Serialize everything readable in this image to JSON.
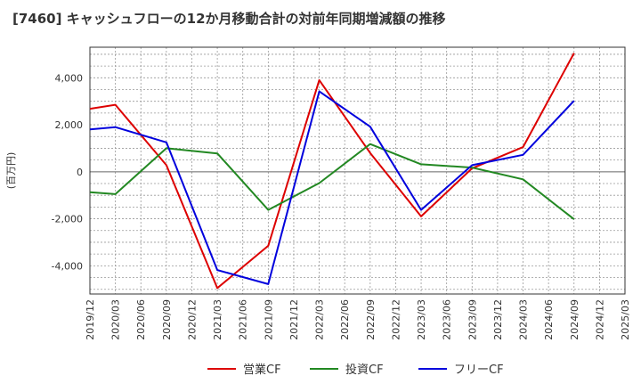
{
  "chart_data": {
    "type": "line",
    "title": "[7460]  キャッシュフローの12か月移動合計の対前年同期増減額の推移",
    "ylabel": "(百万円)",
    "xlabel": "",
    "ylim": [
      -5200,
      5300
    ],
    "yticks": [
      -4000,
      -2000,
      0,
      2000,
      4000
    ],
    "ytick_labels": [
      "-4,000",
      "-2,000",
      "0",
      "2,000",
      "4,000"
    ],
    "x_ticks": [
      "2019/12",
      "2020/03",
      "2020/06",
      "2020/09",
      "2020/12",
      "2021/03",
      "2021/06",
      "2021/09",
      "2021/12",
      "2022/03",
      "2022/06",
      "2022/09",
      "2022/12",
      "2023/03",
      "2023/06",
      "2023/09",
      "2023/12",
      "2024/03",
      "2024/06",
      "2024/09",
      "2024/12",
      "2025/03"
    ],
    "grid": true,
    "legend_position": "bottom",
    "series": [
      {
        "name": "営業CF",
        "color": "#dd0000",
        "points": [
          [
            "2019/12",
            2680
          ],
          [
            "2020/03",
            2850
          ],
          [
            "2020/09",
            280
          ],
          [
            "2021/03",
            -4950
          ],
          [
            "2021/09",
            -3150
          ],
          [
            "2022/03",
            3900
          ],
          [
            "2022/09",
            800
          ],
          [
            "2023/03",
            -1900
          ],
          [
            "2023/09",
            150
          ],
          [
            "2024/03",
            1050
          ],
          [
            "2024/09",
            5050
          ]
        ]
      },
      {
        "name": "投資CF",
        "color": "#228822",
        "points": [
          [
            "2019/12",
            -870
          ],
          [
            "2020/03",
            -950
          ],
          [
            "2020/09",
            1000
          ],
          [
            "2021/03",
            780
          ],
          [
            "2021/09",
            -1620
          ],
          [
            "2022/03",
            -480
          ],
          [
            "2022/09",
            1180
          ],
          [
            "2023/03",
            320
          ],
          [
            "2023/09",
            180
          ],
          [
            "2024/03",
            -320
          ],
          [
            "2024/09",
            -2020
          ]
        ]
      },
      {
        "name": "フリーCF",
        "color": "#0000dd",
        "points": [
          [
            "2019/12",
            1800
          ],
          [
            "2020/03",
            1900
          ],
          [
            "2020/09",
            1250
          ],
          [
            "2021/03",
            -4180
          ],
          [
            "2021/09",
            -4780
          ],
          [
            "2022/03",
            3420
          ],
          [
            "2022/09",
            1920
          ],
          [
            "2023/03",
            -1620
          ],
          [
            "2023/09",
            280
          ],
          [
            "2024/03",
            720
          ],
          [
            "2024/09",
            3020
          ]
        ]
      }
    ]
  }
}
